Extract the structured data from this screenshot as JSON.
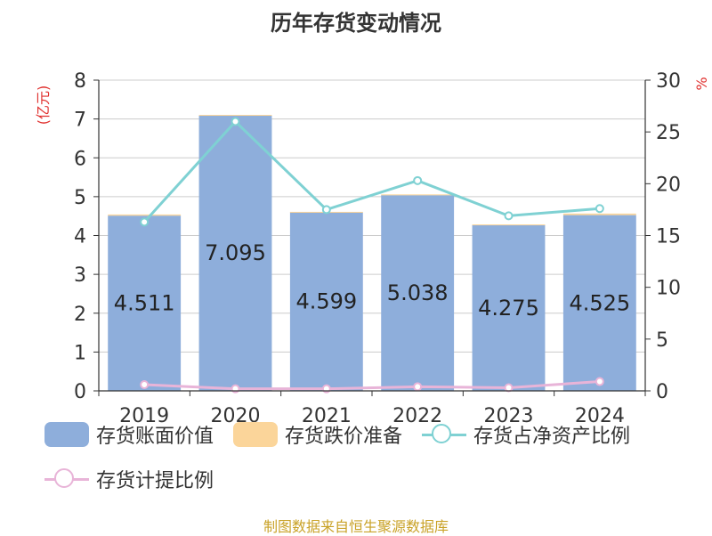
{
  "chart_data": {
    "type": "bar",
    "title": "历年存货变动情况",
    "categories": [
      "2019",
      "2020",
      "2021",
      "2022",
      "2023",
      "2024"
    ],
    "y_left": {
      "label": "(亿元)",
      "range": [
        0,
        8
      ],
      "ticks": [
        "0",
        "1",
        "2",
        "3",
        "4",
        "5",
        "6",
        "7",
        "8"
      ]
    },
    "y_right": {
      "label": "%",
      "range": [
        0,
        30
      ],
      "ticks": [
        "0",
        "5",
        "10",
        "15",
        "20",
        "25",
        "30"
      ]
    },
    "grid": true,
    "legend_position": "bottom",
    "series": [
      {
        "name": "存货账面价值",
        "kind": "bar",
        "axis": "left",
        "color": "#8eaedb",
        "values": [
          4.511,
          7.095,
          4.599,
          5.038,
          4.275,
          4.525
        ],
        "labels": [
          "4.511",
          "7.095",
          "4.599",
          "5.038",
          "4.275",
          "4.525"
        ]
      },
      {
        "name": "存货跌价准备",
        "kind": "bar-stacked",
        "axis": "left",
        "color": "#fbd59a",
        "values": [
          0.03,
          0.01,
          0.01,
          0.02,
          0.01,
          0.04
        ]
      },
      {
        "name": "存货占净资产比例",
        "kind": "line",
        "axis": "right",
        "color": "#7fd1d3",
        "values": [
          16.3,
          26.0,
          17.5,
          20.3,
          16.9,
          17.6
        ]
      },
      {
        "name": "存货计提比例",
        "kind": "line",
        "axis": "right",
        "color": "#e8b4d8",
        "values": [
          0.6,
          0.2,
          0.2,
          0.4,
          0.3,
          0.9
        ]
      }
    ]
  },
  "source_note": "制图数据来自恒生聚源数据库"
}
